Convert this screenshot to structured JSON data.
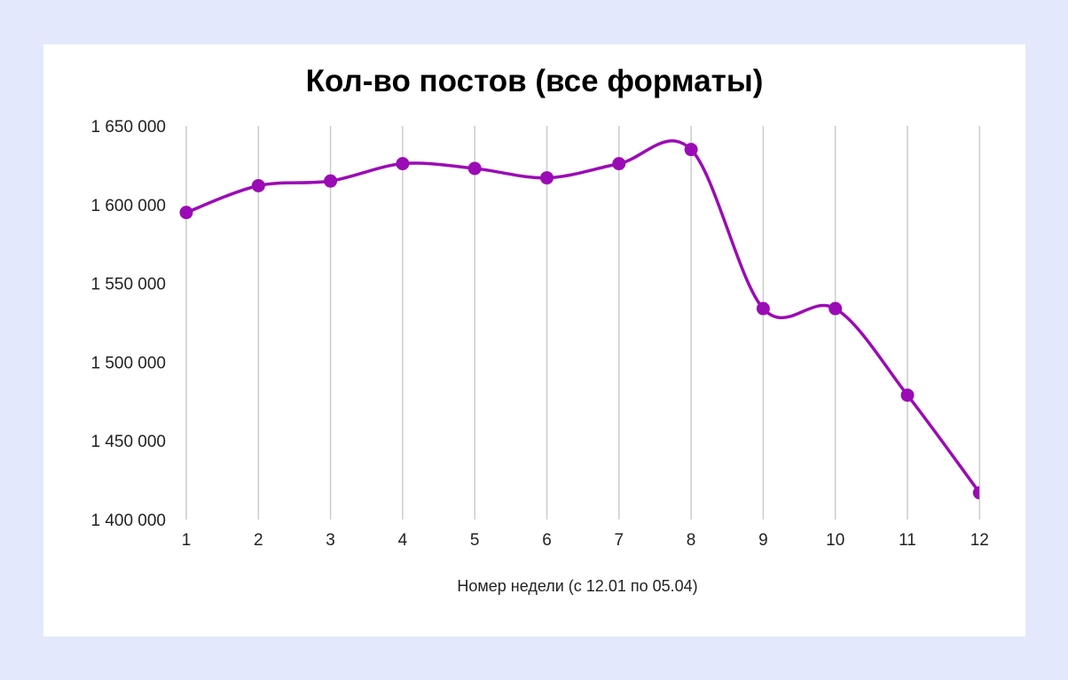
{
  "page": {
    "background_color": "#e3e8fd",
    "card_color": "#ffffff"
  },
  "chart": {
    "title": "Кол-во постов (все форматы)",
    "xlabel": "Номер недели (с 12.01 по 05.04)",
    "series_color": "#9b0bb5",
    "grid_color": "#cccccc"
  },
  "chart_data": {
    "type": "line",
    "title": "Кол-во постов (все форматы)",
    "xlabel": "Номер недели (с 12.01 по 05.04)",
    "ylabel": "",
    "categories": [
      "1",
      "2",
      "3",
      "4",
      "5",
      "6",
      "7",
      "8",
      "9",
      "10",
      "11",
      "12"
    ],
    "series": [
      {
        "name": "Кол-во постов",
        "color": "#9b0bb5",
        "smooth": true,
        "markers": true,
        "values": [
          1595000,
          1612000,
          1615000,
          1626000,
          1623000,
          1617000,
          1626000,
          1635000,
          1534000,
          1534000,
          1479000,
          1417000
        ]
      }
    ],
    "ylim": [
      1400000,
      1650000
    ],
    "yticks": [
      1400000,
      1450000,
      1500000,
      1550000,
      1600000,
      1650000
    ],
    "ytick_labels": [
      "1 400 000",
      "1 450 000",
      "1 500 000",
      "1 550 000",
      "1 600 000",
      "1 650 000"
    ],
    "grid": {
      "vertical": true,
      "horizontal": false
    },
    "legend": null
  }
}
